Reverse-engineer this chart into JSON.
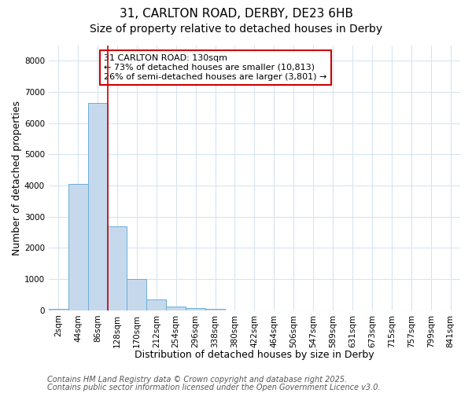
{
  "title1": "31, CARLTON ROAD, DERBY, DE23 6HB",
  "title2": "Size of property relative to detached houses in Derby",
  "xlabel": "Distribution of detached houses by size in Derby",
  "ylabel": "Number of detached properties",
  "bar_color": "#c6d9ec",
  "bar_edge_color": "#6aaed6",
  "categories": [
    "2sqm",
    "44sqm",
    "86sqm",
    "128sqm",
    "170sqm",
    "212sqm",
    "254sqm",
    "296sqm",
    "338sqm",
    "380sqm",
    "422sqm",
    "464sqm",
    "506sqm",
    "547sqm",
    "589sqm",
    "631sqm",
    "673sqm",
    "715sqm",
    "757sqm",
    "799sqm",
    "841sqm"
  ],
  "bar_values": [
    50,
    4050,
    6650,
    2700,
    990,
    340,
    130,
    70,
    50,
    0,
    0,
    0,
    0,
    0,
    0,
    0,
    0,
    0,
    0,
    0,
    0
  ],
  "ylim": [
    0,
    8500
  ],
  "yticks": [
    0,
    1000,
    2000,
    3000,
    4000,
    5000,
    6000,
    7000,
    8000
  ],
  "red_line_x": 2.5,
  "annotation_text": "31 CARLTON ROAD: 130sqm\n← 73% of detached houses are smaller (10,813)\n26% of semi-detached houses are larger (3,801) →",
  "annotation_box_color": "#ffffff",
  "annotation_edge_color": "#cc0000",
  "footer1": "Contains HM Land Registry data © Crown copyright and database right 2025.",
  "footer2": "Contains public sector information licensed under the Open Government Licence v3.0.",
  "bg_color": "#ffffff",
  "grid_color": "#d8e4f0",
  "title1_fontsize": 11,
  "title2_fontsize": 10,
  "axis_label_fontsize": 9,
  "tick_fontsize": 7.5,
  "footer_fontsize": 7,
  "annot_fontsize": 8
}
